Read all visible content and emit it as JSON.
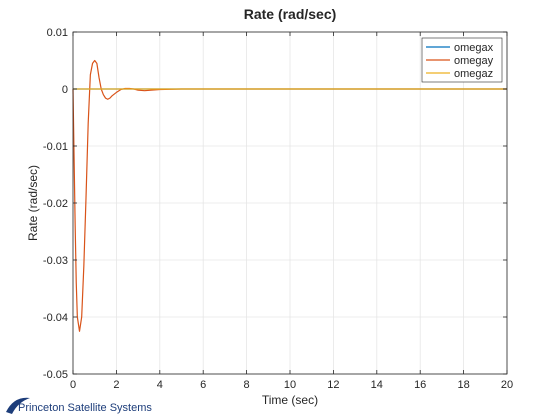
{
  "chart_data": {
    "type": "line",
    "title": "Rate (rad/sec)",
    "xlabel": "Time (sec)",
    "ylabel": "Rate (rad/sec)",
    "xlim": [
      0,
      20
    ],
    "ylim": [
      -0.05,
      0.01
    ],
    "x_ticks": [
      0,
      2,
      4,
      6,
      8,
      10,
      12,
      14,
      16,
      18,
      20
    ],
    "x_tick_labels": [
      "0",
      "2",
      "4",
      "6",
      "8",
      "10",
      "12",
      "14",
      "16",
      "18",
      "20"
    ],
    "y_ticks": [
      0.01,
      0,
      -0.01,
      -0.02,
      -0.03,
      -0.04,
      -0.05
    ],
    "y_tick_labels": [
      "0.01",
      "0",
      "-0.01",
      "-0.02",
      "-0.03",
      "-0.04",
      "-0.05"
    ],
    "grid": true,
    "legend_position": "top-right",
    "series": [
      {
        "name": "omegax",
        "color": "#0072BD",
        "x": [
          0,
          0.5,
          1,
          2,
          4,
          6,
          8,
          10,
          12,
          14,
          16,
          18,
          20
        ],
        "y": [
          0,
          0,
          0,
          0,
          0,
          0,
          0,
          0,
          0,
          0,
          0,
          0,
          0
        ]
      },
      {
        "name": "omegay",
        "color": "#D95319",
        "x": [
          0,
          0.05,
          0.1,
          0.15,
          0.2,
          0.3,
          0.4,
          0.5,
          0.6,
          0.7,
          0.8,
          0.9,
          1.0,
          1.1,
          1.2,
          1.3,
          1.4,
          1.5,
          1.6,
          1.7,
          1.8,
          2.0,
          2.2,
          2.4,
          2.6,
          2.8,
          3.0,
          3.3,
          3.6,
          4.0,
          4.5,
          5.0,
          6,
          8,
          10,
          12,
          14,
          16,
          18,
          20
        ],
        "y": [
          0,
          -0.012,
          -0.024,
          -0.034,
          -0.04,
          -0.0425,
          -0.04,
          -0.031,
          -0.019,
          -0.006,
          0.0025,
          0.0045,
          0.005,
          0.0045,
          0.002,
          0.0,
          -0.001,
          -0.0016,
          -0.0018,
          -0.0016,
          -0.0012,
          -0.0006,
          -0.0001,
          0.0001,
          0.0001,
          0.0,
          -0.0002,
          -0.0003,
          -0.0002,
          -0.0001,
          -5e-05,
          0,
          0,
          0,
          0,
          0,
          0,
          0,
          0,
          0
        ]
      },
      {
        "name": "omegaz",
        "color": "#EDB120",
        "x": [
          0,
          0.5,
          1,
          2,
          4,
          6,
          8,
          10,
          12,
          14,
          16,
          18,
          20
        ],
        "y": [
          0,
          0,
          0,
          0,
          0,
          0,
          0,
          0,
          0,
          0,
          0,
          0,
          0
        ]
      }
    ]
  },
  "branding": {
    "name": "Princeton Satellite Systems",
    "logo_color": "#1d3d7a"
  }
}
